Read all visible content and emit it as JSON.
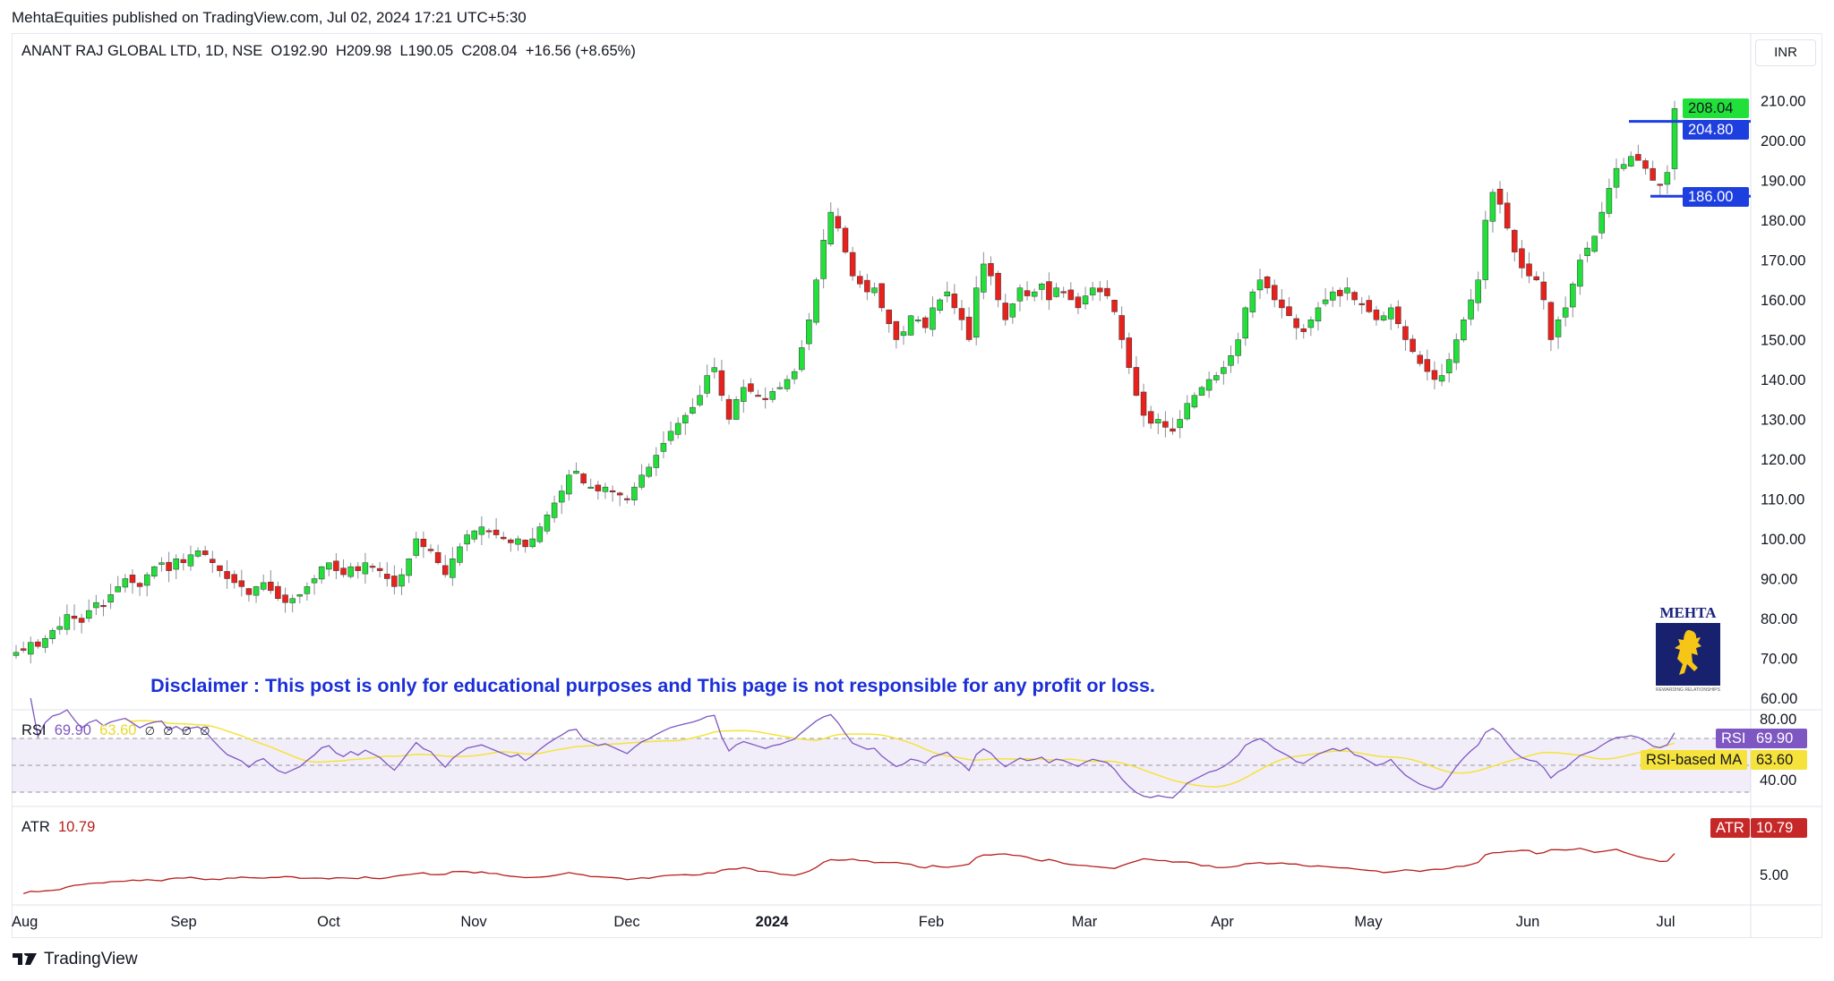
{
  "header": {
    "published": "MehtaEquities published on TradingView.com, Jul 02, 2024 17:21 UTC+5:30"
  },
  "legend": {
    "symbol": "ANANT RAJ GLOBAL LTD, 1D, NSE",
    "open": "O192.90",
    "high": "H209.98",
    "low": "L190.05",
    "close": "C208.04",
    "change": "+16.56 (+8.65%)"
  },
  "currency": "INR",
  "price_tags": {
    "last": "208.04",
    "upper_level": "204.80",
    "lower_level": "186.00"
  },
  "rsi": {
    "name": "RSI",
    "value": "69.90",
    "ma_value": "63.60",
    "ma_name": "RSI-based MA",
    "placeholders": [
      "∅",
      "∅",
      "∅",
      "∅"
    ],
    "axis": [
      "80.00",
      "40.00"
    ]
  },
  "atr": {
    "name": "ATR",
    "value": "10.79",
    "axis": [
      "5.00"
    ]
  },
  "disclaimer": "Disclaimer : This post is only for educational purposes and This page is not responsible for any profit or loss.",
  "logo": {
    "title": "MEHTA",
    "tagline": "REWARDING RELATIONSHIPS"
  },
  "footer": {
    "brand": "TradingView"
  },
  "colors": {
    "up": "#22e03a",
    "down": "#e8211c",
    "level": "#1e3fe0",
    "rsi": "#7e57c2",
    "rsi_ma": "#f5e23b",
    "atr": "#b71c1c"
  },
  "chart_data": {
    "type": "candlestick",
    "title": "ANANT RAJ GLOBAL LTD, 1D, NSE",
    "ylim": [
      60,
      210
    ],
    "yticks": [
      "210.00",
      "200.00",
      "190.00",
      "180.00",
      "170.00",
      "160.00",
      "150.00",
      "140.00",
      "130.00",
      "120.00",
      "110.00",
      "100.00",
      "90.00",
      "80.00",
      "70.00",
      "60.00"
    ],
    "xticks": [
      "Aug",
      "Sep",
      "Oct",
      "Nov",
      "Dec",
      "2024",
      "Feb",
      "Mar",
      "Apr",
      "May",
      "Jun",
      "Jul"
    ],
    "last_candle": {
      "open": 192.9,
      "high": 209.98,
      "low": 190.05,
      "close": 208.04
    },
    "levels": [
      204.8,
      186.0
    ],
    "closes": [
      71.5,
      72,
      74,
      73,
      75,
      77,
      78,
      81,
      80,
      79,
      82,
      84,
      83,
      86,
      88,
      90,
      89,
      88,
      91,
      93,
      94,
      92,
      95,
      94,
      96,
      97,
      96,
      94,
      92,
      90,
      89,
      88,
      86,
      88,
      89,
      87,
      85,
      84,
      85,
      86,
      88,
      90,
      93,
      94,
      92,
      91,
      93,
      92,
      94,
      93,
      92,
      90,
      88,
      91,
      95,
      100,
      98,
      97,
      94,
      91,
      95,
      98,
      101,
      102,
      103,
      102,
      101,
      100,
      99,
      100,
      98,
      100,
      103,
      106,
      109,
      112,
      116,
      117,
      114,
      113,
      112,
      113,
      112,
      111,
      110,
      113,
      116,
      118,
      121,
      124,
      127,
      129,
      131,
      133,
      136,
      141,
      143,
      136,
      130,
      135,
      138,
      137,
      136,
      135,
      137,
      138,
      140,
      142,
      148,
      155,
      165,
      175,
      182,
      178,
      172,
      166,
      164,
      162,
      163,
      158,
      154,
      150,
      152,
      156,
      155,
      153,
      158,
      160,
      162,
      158,
      155,
      150,
      163,
      169,
      166,
      160,
      155,
      159,
      163,
      161,
      162,
      164,
      160,
      163,
      162,
      160,
      158,
      161,
      163,
      162,
      161,
      157,
      150,
      143,
      136,
      131,
      129,
      130,
      128,
      127,
      130,
      134,
      136,
      138,
      140,
      141,
      143,
      146,
      150,
      158,
      162,
      165,
      163,
      160,
      158,
      156,
      153,
      152,
      155,
      158,
      160,
      162,
      161,
      163,
      160,
      159,
      157,
      155,
      156,
      158,
      154,
      150,
      147,
      144,
      142,
      140,
      141,
      145,
      150,
      155,
      160,
      165,
      180,
      187,
      184,
      178,
      172,
      168,
      166,
      165,
      160,
      150,
      155,
      158,
      164,
      170,
      173,
      176,
      182,
      188,
      193,
      194,
      196,
      195,
      193,
      190,
      189,
      192,
      208.04
    ]
  }
}
